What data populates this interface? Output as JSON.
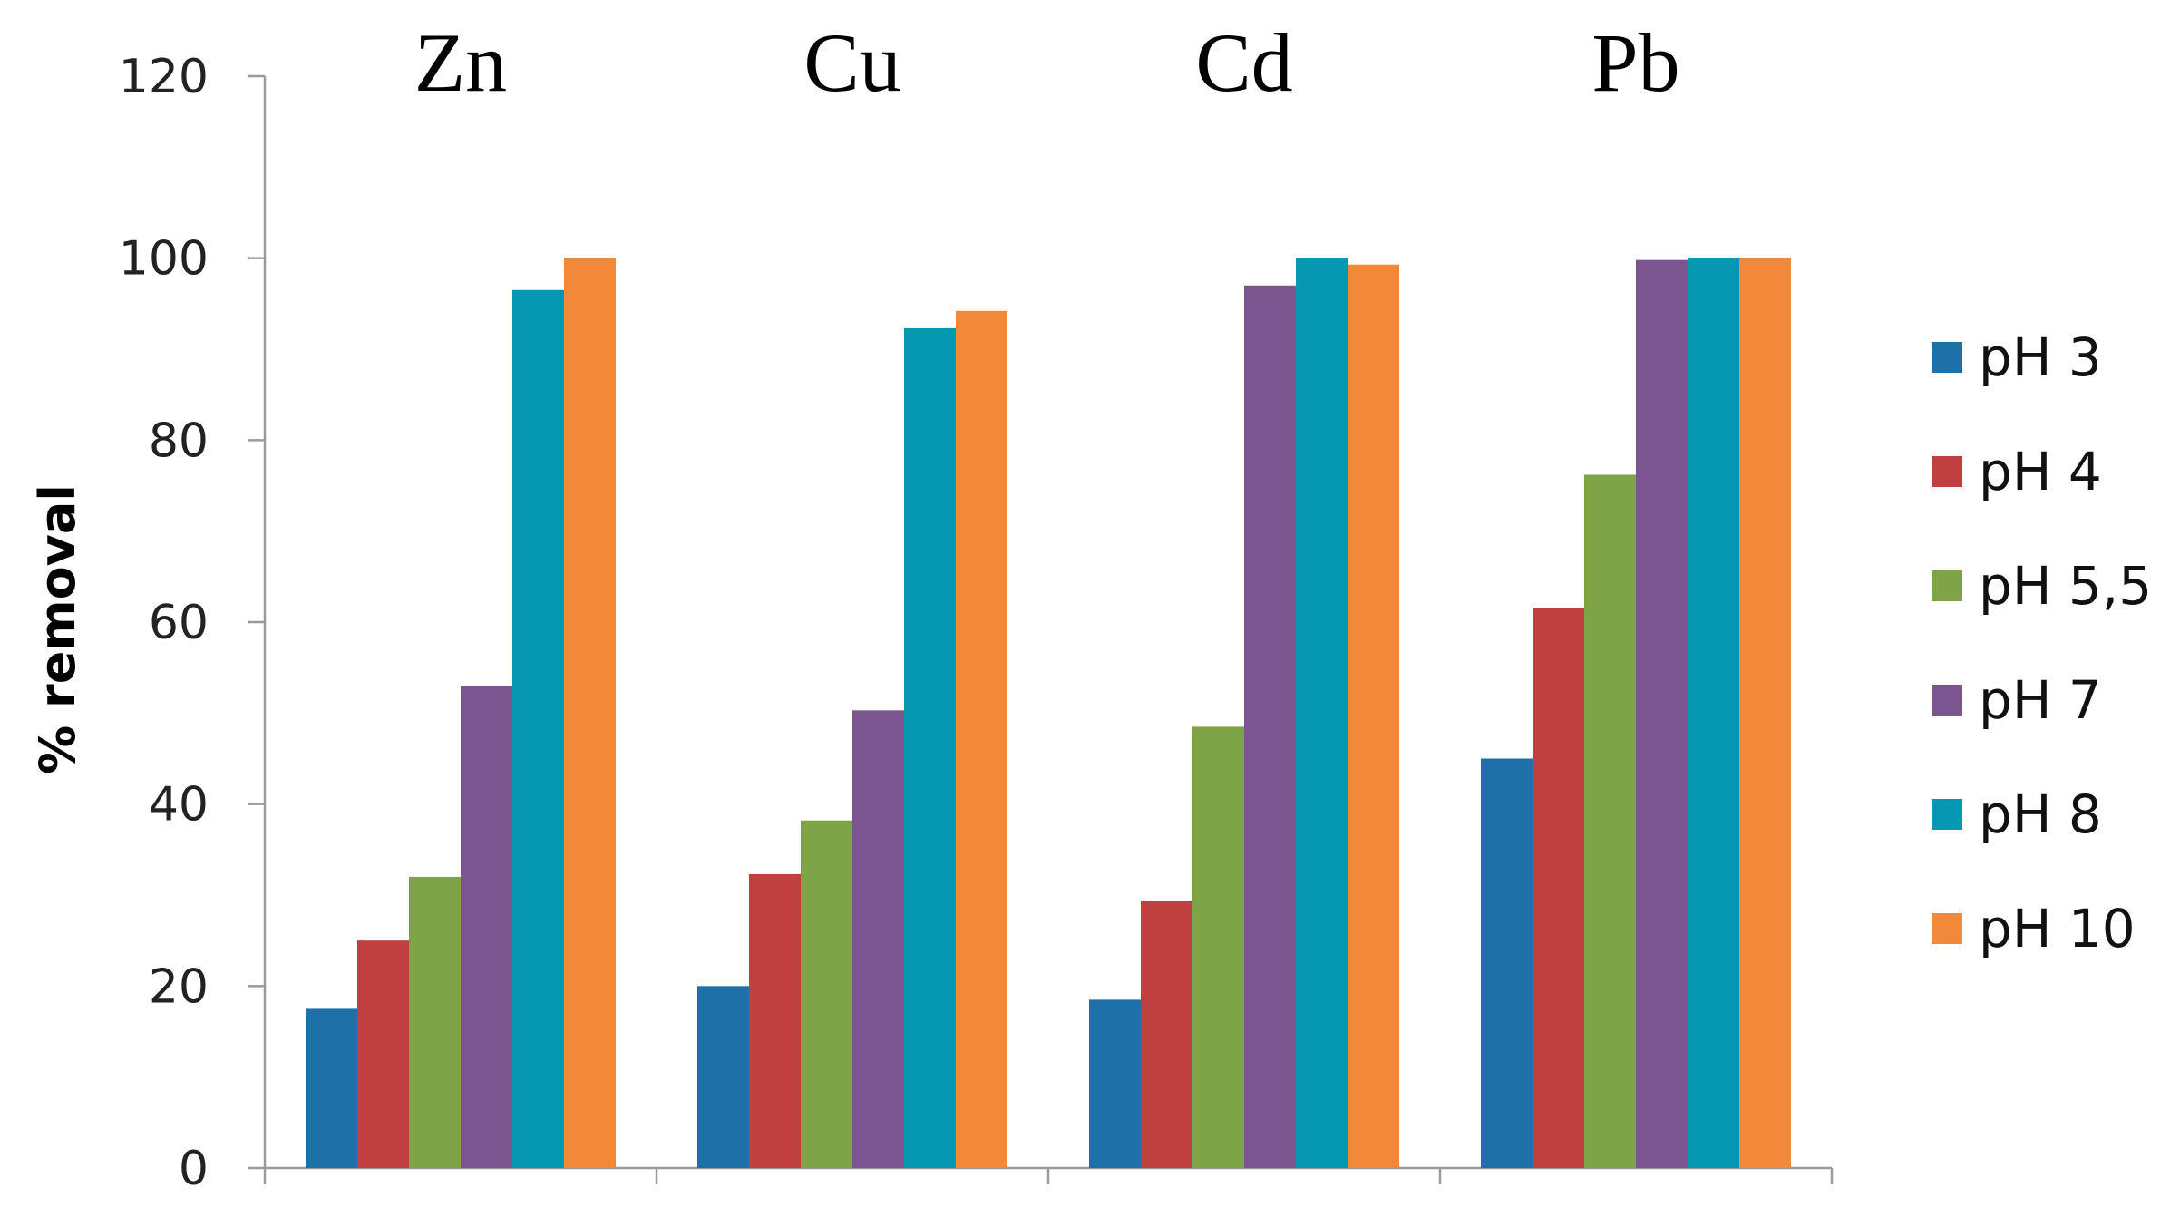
{
  "chart_data": {
    "type": "bar",
    "title": "",
    "xlabel": "",
    "ylabel": "% removal",
    "ylim": [
      0,
      120
    ],
    "yticks": [
      0,
      20,
      40,
      60,
      80,
      100,
      120
    ],
    "grid": false,
    "legend_position": "right",
    "categories": [
      "Zn",
      "Cu",
      "Cd",
      "Pb"
    ],
    "series": [
      {
        "name": "pH 3",
        "color": "#1F6FA8",
        "values": [
          17.5,
          20,
          18.5,
          45
        ]
      },
      {
        "name": "pH 4",
        "color": "#C0403F",
        "values": [
          25,
          32.3,
          29.3,
          61.5
        ]
      },
      {
        "name": "pH 5,5",
        "color": "#7EA447",
        "values": [
          32,
          38.2,
          48.5,
          76.2
        ]
      },
      {
        "name": "pH 7",
        "color": "#7A558E",
        "values": [
          53,
          50.3,
          97,
          99.8
        ]
      },
      {
        "name": "pH 8",
        "color": "#0698B3",
        "values": [
          96.5,
          92.3,
          100,
          100
        ]
      },
      {
        "name": "pH 10",
        "color": "#F0893A",
        "values": [
          100,
          94.2,
          99.3,
          100
        ]
      }
    ]
  }
}
